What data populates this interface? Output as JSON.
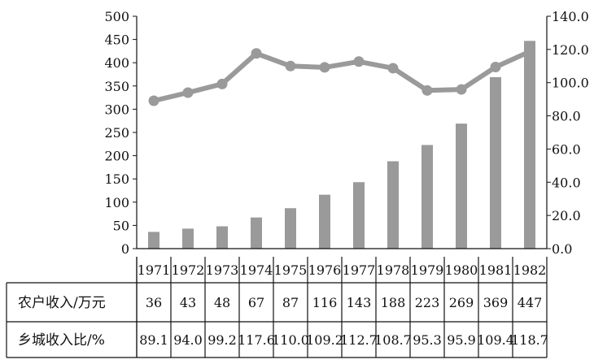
{
  "chart_data": {
    "type": "bar",
    "categories": [
      "1971",
      "1972",
      "1973",
      "1974",
      "1975",
      "1976",
      "1977",
      "1978",
      "1979",
      "1980",
      "1981",
      "1982"
    ],
    "series": [
      {
        "name": "农户收入/万元",
        "type": "bar",
        "axis": "left",
        "values": [
          36,
          43,
          48,
          67,
          87,
          116,
          143,
          188,
          223,
          269,
          369,
          447
        ],
        "labels": [
          "36",
          "43",
          "48",
          "67",
          "87",
          "116",
          "143",
          "188",
          "223",
          "269",
          "369",
          "447"
        ],
        "color": "#9a9a9a"
      },
      {
        "name": "乡城收入比/%",
        "type": "line",
        "axis": "right",
        "values": [
          89.1,
          94.0,
          99.2,
          117.6,
          110.0,
          109.2,
          112.7,
          108.7,
          95.3,
          95.9,
          109.4,
          118.7
        ],
        "labels": [
          "89.1",
          "94.0",
          "99.2",
          "117.6",
          "110.0",
          "109.2",
          "112.7",
          "108.7",
          "95.3",
          "95.9",
          "109.4",
          "118.7"
        ],
        "color": "#9a9a9a"
      }
    ],
    "yleft": {
      "ylim": [
        0,
        500
      ],
      "ticks": [
        "0",
        "50",
        "100",
        "150",
        "200",
        "250",
        "300",
        "350",
        "400",
        "450",
        "500"
      ]
    },
    "yright": {
      "ylim": [
        0,
        140
      ],
      "ticks": [
        "0.0",
        "20.0",
        "40.0",
        "60.0",
        "80.0",
        "100.0",
        "120.0",
        "140.0"
      ]
    },
    "grid": false,
    "legend": "none (data table below)"
  }
}
